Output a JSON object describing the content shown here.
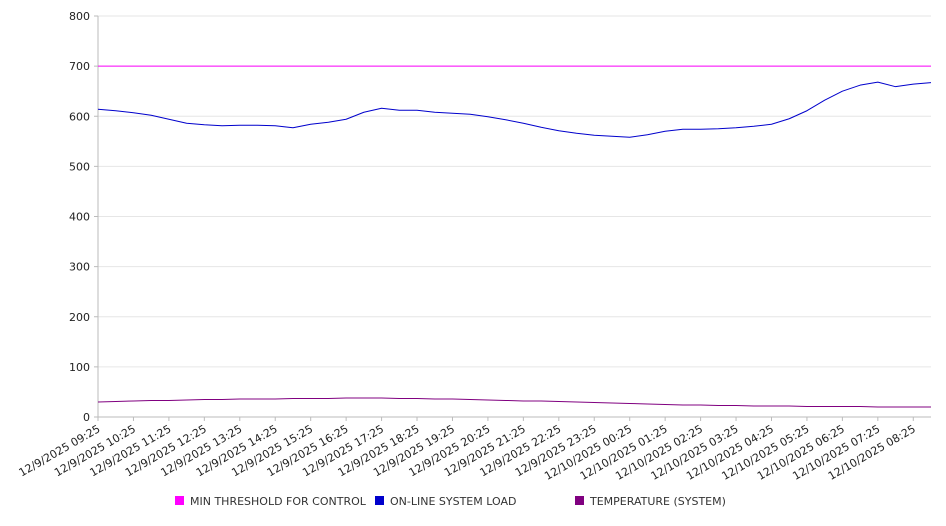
{
  "chart_data": {
    "type": "line",
    "title": "",
    "xlabel": "",
    "ylabel": "",
    "ylim": [
      0,
      800
    ],
    "yticks": [
      0,
      100,
      200,
      300,
      400,
      500,
      600,
      700,
      800
    ],
    "grid": true,
    "legend_position": "bottom",
    "x_tick_labels": [
      "12/9/2025 09:25",
      "12/9/2025 10:25",
      "12/9/2025 11:25",
      "12/9/2025 12:25",
      "12/9/2025 13:25",
      "12/9/2025 14:25",
      "12/9/2025 15:25",
      "12/9/2025 16:25",
      "12/9/2025 17:25",
      "12/9/2025 18:25",
      "12/9/2025 19:25",
      "12/9/2025 20:25",
      "12/9/2025 21:25",
      "12/9/2025 22:25",
      "12/9/2025 23:25",
      "12/10/2025 00:25",
      "12/10/2025 01:25",
      "12/10/2025 02:25",
      "12/10/2025 03:25",
      "12/10/2025 04:25",
      "12/10/2025 05:25",
      "12/10/2025 06:25",
      "12/10/2025 07:25",
      "12/10/2025 08:25"
    ],
    "x": [
      "12/9/2025 09:25",
      "12/9/2025 09:55",
      "12/9/2025 10:25",
      "12/9/2025 10:55",
      "12/9/2025 11:25",
      "12/9/2025 11:55",
      "12/9/2025 12:25",
      "12/9/2025 12:55",
      "12/9/2025 13:25",
      "12/9/2025 13:55",
      "12/9/2025 14:25",
      "12/9/2025 14:55",
      "12/9/2025 15:25",
      "12/9/2025 15:55",
      "12/9/2025 16:25",
      "12/9/2025 16:55",
      "12/9/2025 17:25",
      "12/9/2025 17:55",
      "12/9/2025 18:25",
      "12/9/2025 18:55",
      "12/9/2025 19:25",
      "12/9/2025 19:55",
      "12/9/2025 20:25",
      "12/9/2025 20:55",
      "12/9/2025 21:25",
      "12/9/2025 21:55",
      "12/9/2025 22:25",
      "12/9/2025 22:55",
      "12/9/2025 23:25",
      "12/9/2025 23:55",
      "12/10/2025 00:25",
      "12/10/2025 00:55",
      "12/10/2025 01:25",
      "12/10/2025 01:55",
      "12/10/2025 02:25",
      "12/10/2025 02:55",
      "12/10/2025 03:25",
      "12/10/2025 03:55",
      "12/10/2025 04:25",
      "12/10/2025 04:55",
      "12/10/2025 05:25",
      "12/10/2025 05:55",
      "12/10/2025 06:25",
      "12/10/2025 06:55",
      "12/10/2025 07:25",
      "12/10/2025 07:55",
      "12/10/2025 08:25",
      "12/10/2025 08:55"
    ],
    "series": [
      {
        "name": "MIN THRESHOLD FOR CONTROL",
        "color": "#ff00ff",
        "values": [
          700,
          700,
          700,
          700,
          700,
          700,
          700,
          700,
          700,
          700,
          700,
          700,
          700,
          700,
          700,
          700,
          700,
          700,
          700,
          700,
          700,
          700,
          700,
          700,
          700,
          700,
          700,
          700,
          700,
          700,
          700,
          700,
          700,
          700,
          700,
          700,
          700,
          700,
          700,
          700,
          700,
          700,
          700,
          700,
          700,
          700,
          700,
          700
        ]
      },
      {
        "name": "ON-LINE SYSTEM LOAD",
        "color": "#0000cc",
        "values": [
          614,
          611,
          607,
          602,
          594,
          586,
          583,
          581,
          582,
          582,
          581,
          577,
          584,
          588,
          594,
          608,
          616,
          612,
          612,
          608,
          606,
          604,
          599,
          593,
          586,
          578,
          571,
          566,
          562,
          560,
          558,
          563,
          570,
          574,
          574,
          575,
          577,
          580,
          584,
          595,
          611,
          632,
          650,
          662,
          668,
          659,
          664,
          667
        ]
      },
      {
        "name": "TEMPERATURE (SYSTEM)",
        "color": "#800080",
        "values": [
          30,
          31,
          32,
          33,
          33,
          34,
          35,
          35,
          36,
          36,
          36,
          37,
          37,
          37,
          38,
          38,
          38,
          37,
          37,
          36,
          36,
          35,
          34,
          33,
          32,
          32,
          31,
          30,
          29,
          28,
          27,
          26,
          25,
          24,
          24,
          23,
          23,
          22,
          22,
          22,
          21,
          21,
          21,
          21,
          20,
          20,
          20,
          20
        ]
      }
    ]
  }
}
